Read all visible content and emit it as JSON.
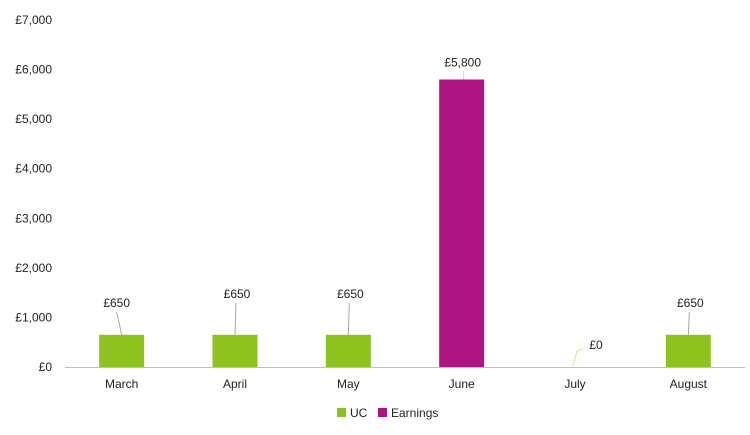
{
  "chart_data": {
    "type": "bar",
    "title": "",
    "xlabel": "",
    "ylabel": "",
    "categories": [
      "March",
      "April",
      "May",
      "June",
      "July",
      "August"
    ],
    "series": [
      {
        "name": "UC",
        "color": "#8dc21f",
        "values": [
          650,
          650,
          650,
          null,
          0,
          650
        ],
        "labels": [
          "£650",
          "£650",
          "£650",
          "",
          "£0",
          "£650"
        ]
      },
      {
        "name": "Earnings",
        "color": "#ad1582",
        "values": [
          null,
          null,
          null,
          5800,
          null,
          null
        ],
        "labels": [
          "",
          "",
          "",
          "£5,800",
          "",
          ""
        ]
      }
    ],
    "ylim": [
      0,
      7000
    ],
    "yticks": [
      0,
      1000,
      2000,
      3000,
      4000,
      5000,
      6000,
      7000
    ],
    "ytick_labels": [
      "£0",
      "£1,000",
      "£2,000",
      "£3,000",
      "£4,000",
      "£5,000",
      "£6,000",
      "£7,000"
    ],
    "grid": false,
    "legend_position": "bottom"
  }
}
